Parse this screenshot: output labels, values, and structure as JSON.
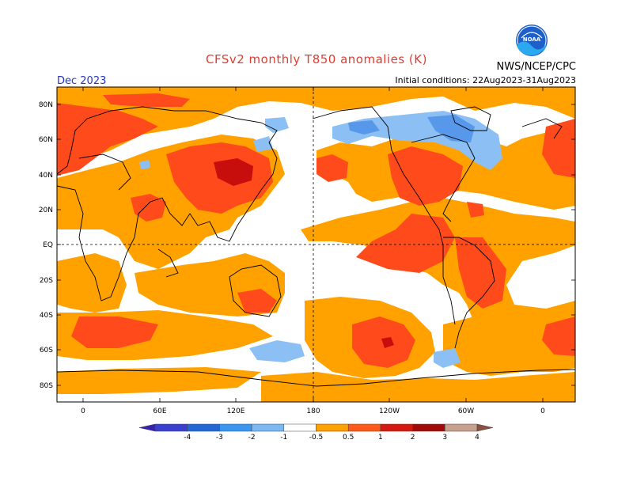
{
  "title": "CFSv2 monthly T850 anomalies (K)",
  "agency": "NWS/NCEP/CPC",
  "logo_text": "NOAA",
  "month": "Dec 2023",
  "initial_conditions": "Initial conditions: 22Aug2023-31Aug2023",
  "lat_labels": [
    "80N",
    "60N",
    "40N",
    "20N",
    "EQ",
    "20S",
    "40S",
    "60S",
    "80S"
  ],
  "lon_labels": [
    "0",
    "60E",
    "120E",
    "180",
    "120W",
    "60W",
    "0"
  ],
  "colorbar": {
    "labels": [
      "-4",
      "-3",
      "-2",
      "-1",
      "-0.5",
      "0.5",
      "1",
      "2",
      "3",
      "4"
    ],
    "colors": [
      "#3a1fb0",
      "#3a3fd0",
      "#2168d6",
      "#3a96f0",
      "#7bb8f4",
      "#ffffff",
      "#fda000",
      "#ff5a1a",
      "#d41a10",
      "#a00a0a",
      "#c8a090",
      "#8a5040"
    ]
  },
  "colors": {
    "orange": "#ffa200",
    "red": "#ff4a1c",
    "darkred": "#c80d0d",
    "lightblue": "#8cc0f4",
    "blue": "#5898ea"
  }
}
